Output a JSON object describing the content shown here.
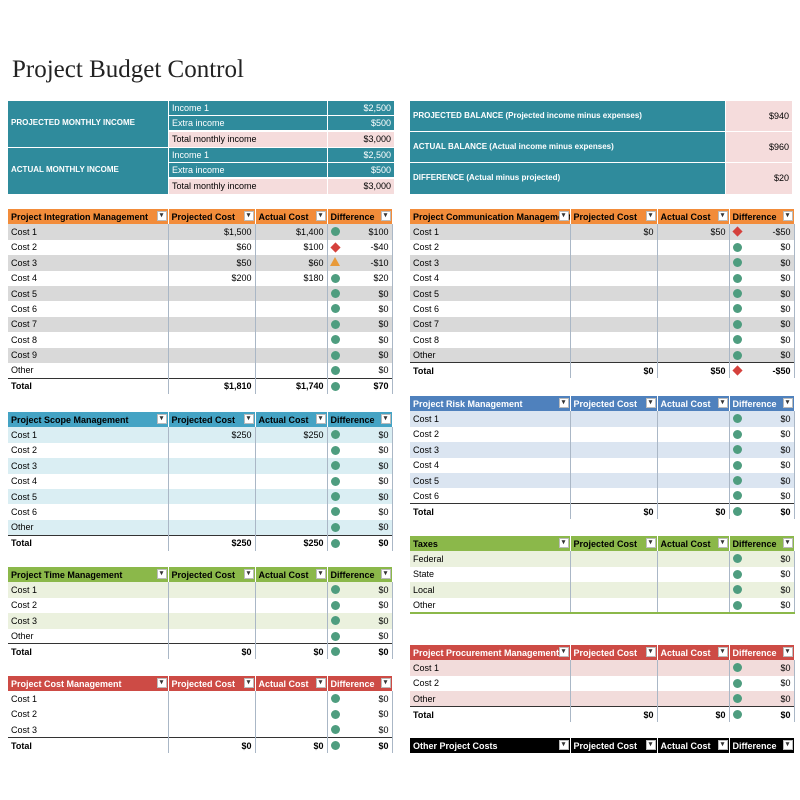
{
  "title": "Project Budget Control",
  "summary_left": {
    "projected_label": "PROJECTED MONTHLY INCOME",
    "actual_label": "ACTUAL MONTHLY INCOME",
    "projected_rows": [
      {
        "label": "Income 1",
        "value": "$2,500"
      },
      {
        "label": "Extra income",
        "value": "$500"
      },
      {
        "label": "Total monthly income",
        "value": "$3,000"
      }
    ],
    "actual_rows": [
      {
        "label": "Income 1",
        "value": "$2,500"
      },
      {
        "label": "Extra income",
        "value": "$500"
      },
      {
        "label": "Total monthly income",
        "value": "$3,000"
      }
    ]
  },
  "summary_right": [
    {
      "label": "PROJECTED BALANCE (Projected income minus expenses)",
      "value": "$940"
    },
    {
      "label": "ACTUAL BALANCE (Actual income minus expenses)",
      "value": "$960"
    },
    {
      "label": "DIFFERENCE (Actual minus projected)",
      "value": "$20"
    }
  ],
  "colors": {
    "teal": "#2f8b9c",
    "orange": "#f28c3a",
    "blue": "#44a3c4",
    "green": "#8bb84a",
    "red": "#cd4b45",
    "steel": "#4f81bd",
    "black": "#000000"
  },
  "tables": [
    {
      "id": "integration",
      "color": "#f28c3a",
      "band": "#d9d9d9",
      "headers": [
        "Project Integration Management",
        "Projected Cost",
        "Actual Cost",
        "Difference"
      ],
      "rows": [
        [
          "Cost 1",
          "$1,500",
          "$1,400",
          "green",
          "$100"
        ],
        [
          "Cost 2",
          "$60",
          "$100",
          "red",
          "-$40"
        ],
        [
          "Cost 3",
          "$50",
          "$60",
          "tri",
          "-$10"
        ],
        [
          "Cost 4",
          "$200",
          "$180",
          "green",
          "$20"
        ],
        [
          "Cost 5",
          "",
          "",
          "green",
          "$0"
        ],
        [
          "Cost 6",
          "",
          "",
          "green",
          "$0"
        ],
        [
          "Cost 7",
          "",
          "",
          "green",
          "$0"
        ],
        [
          "Cost 8",
          "",
          "",
          "green",
          "$0"
        ],
        [
          "Cost 9",
          "",
          "",
          "green",
          "$0"
        ],
        [
          "Other",
          "",
          "",
          "green",
          "$0"
        ]
      ],
      "total": [
        "Total",
        "$1,810",
        "$1,740",
        "green",
        "$70"
      ]
    },
    {
      "id": "communication",
      "color": "#f28c3a",
      "band": "#d9d9d9",
      "headers": [
        "Project Communication Management",
        "Projected Cost",
        "Actual Cost",
        "Difference"
      ],
      "rows": [
        [
          "Cost 1",
          "$0",
          "$50",
          "red",
          "-$50"
        ],
        [
          "Cost 2",
          "",
          "",
          "green",
          "$0"
        ],
        [
          "Cost 3",
          "",
          "",
          "green",
          "$0"
        ],
        [
          "Cost 4",
          "",
          "",
          "green",
          "$0"
        ],
        [
          "Cost 5",
          "",
          "",
          "green",
          "$0"
        ],
        [
          "Cost 6",
          "",
          "",
          "green",
          "$0"
        ],
        [
          "Cost 7",
          "",
          "",
          "green",
          "$0"
        ],
        [
          "Cost 8",
          "",
          "",
          "green",
          "$0"
        ],
        [
          "Other",
          "",
          "",
          "green",
          "$0"
        ]
      ],
      "total": [
        "Total",
        "$0",
        "$50",
        "red",
        "-$50"
      ]
    },
    {
      "id": "scope",
      "color": "#44a3c4",
      "band": "#daeef3",
      "headers": [
        "Project Scope Management",
        "Projected Cost",
        "Actual Cost",
        "Difference"
      ],
      "rows": [
        [
          "Cost 1",
          "$250",
          "$250",
          "green",
          "$0"
        ],
        [
          "Cost 2",
          "",
          "",
          "green",
          "$0"
        ],
        [
          "Cost 3",
          "",
          "",
          "green",
          "$0"
        ],
        [
          "Cost 4",
          "",
          "",
          "green",
          "$0"
        ],
        [
          "Cost 5",
          "",
          "",
          "green",
          "$0"
        ],
        [
          "Cost 6",
          "",
          "",
          "green",
          "$0"
        ],
        [
          "Other",
          "",
          "",
          "green",
          "$0"
        ]
      ],
      "total": [
        "Total",
        "$250",
        "$250",
        "green",
        "$0"
      ]
    },
    {
      "id": "risk",
      "color": "#4f81bd",
      "band": "#dbe5f1",
      "headers": [
        "Project Risk Management",
        "Projected Cost",
        "Actual Cost",
        "Difference"
      ],
      "rows": [
        [
          "Cost 1",
          "",
          "",
          "green",
          "$0"
        ],
        [
          "Cost 2",
          "",
          "",
          "green",
          "$0"
        ],
        [
          "Cost 3",
          "",
          "",
          "green",
          "$0"
        ],
        [
          "Cost 4",
          "",
          "",
          "green",
          "$0"
        ],
        [
          "Cost 5",
          "",
          "",
          "green",
          "$0"
        ],
        [
          "Cost 6",
          "",
          "",
          "green",
          "$0"
        ]
      ],
      "total": [
        "Total",
        "$0",
        "$0",
        "green",
        "$0"
      ]
    },
    {
      "id": "taxes",
      "color": "#8bb84a",
      "band": "#ebf1de",
      "headers": [
        "Taxes",
        "Projected Cost",
        "Actual Cost",
        "Difference"
      ],
      "rows": [
        [
          "Federal",
          "",
          "",
          "green",
          "$0"
        ],
        [
          "State",
          "",
          "",
          "green",
          "$0"
        ],
        [
          "Local",
          "",
          "",
          "green",
          "$0"
        ],
        [
          "Other",
          "",
          "",
          "green",
          "$0"
        ]
      ],
      "total": null
    },
    {
      "id": "time",
      "color": "#8bb84a",
      "band": "#ebf1de",
      "headers": [
        "Project Time Management",
        "Projected Cost",
        "Actual Cost",
        "Difference"
      ],
      "rows": [
        [
          "Cost 1",
          "",
          "",
          "green",
          "$0"
        ],
        [
          "Cost 2",
          "",
          "",
          "green",
          "$0"
        ],
        [
          "Cost 3",
          "",
          "",
          "green",
          "$0"
        ],
        [
          "Other",
          "",
          "",
          "green",
          "$0"
        ]
      ],
      "total": [
        "Total",
        "$0",
        "$0",
        "green",
        "$0"
      ]
    },
    {
      "id": "procurement",
      "color": "#cd4b45",
      "band": "#f2dcdb",
      "headers": [
        "Project Procurement Management",
        "Projected Cost",
        "Actual Cost",
        "Difference"
      ],
      "rows": [
        [
          "Cost 1",
          "",
          "",
          "green",
          "$0"
        ],
        [
          "Cost 2",
          "",
          "",
          "green",
          "$0"
        ],
        [
          "Other",
          "",
          "",
          "green",
          "$0"
        ]
      ],
      "total": [
        "Total",
        "$0",
        "$0",
        "green",
        "$0"
      ]
    },
    {
      "id": "cost",
      "color": "#cd4b45",
      "band": "#ffffff",
      "headers": [
        "Project Cost  Management",
        "Projected Cost",
        "Actual Cost",
        "Difference"
      ],
      "rows": [
        [
          "Cost 1",
          "",
          "",
          "green",
          "$0"
        ],
        [
          "Cost 2",
          "",
          "",
          "green",
          "$0"
        ],
        [
          "Cost 3",
          "",
          "",
          "green",
          "$0"
        ]
      ],
      "total": [
        "Total",
        "$0",
        "$0",
        "green",
        "$0"
      ]
    },
    {
      "id": "other",
      "color": "#000000",
      "band": "#ffffff",
      "headers": [
        "Other Project Costs",
        "Projected Cost",
        "Actual Cost",
        "Difference"
      ],
      "rows": [],
      "total": null
    }
  ]
}
